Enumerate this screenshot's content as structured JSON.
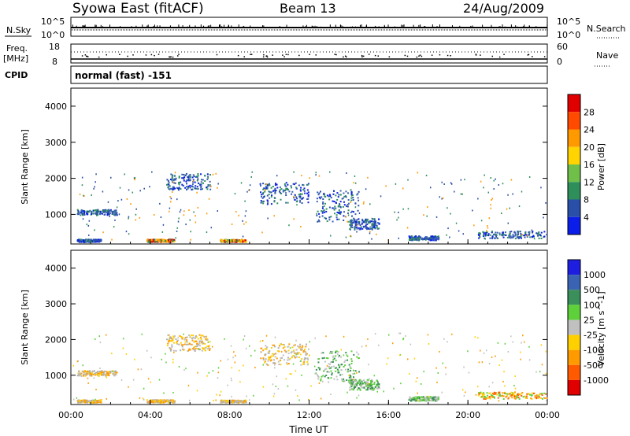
{
  "header": {
    "station": "Syowa East (fitACF)",
    "beam": "Beam 13",
    "date": "24/Aug/2009"
  },
  "status_panels": {
    "nsky_label": "N.Sky",
    "nsky_ticks": [
      "10^5",
      "10^0"
    ],
    "nsearch_label": "N.Search",
    "nsearch_ticks": [
      "10^5",
      "10^0"
    ],
    "freq_label_top": "Freq.",
    "freq_label_unit": "[MHz]",
    "freq_ticks": [
      "18",
      "8"
    ],
    "nave_label": "Nave",
    "nave_ticks": [
      "60",
      "0"
    ],
    "cpid_label": "CPID",
    "cpid_value": "normal (fast) -151"
  },
  "chart_data": [
    {
      "type": "heatmap",
      "panel": "power",
      "ylabel": "Slant Range [km]",
      "ylim": [
        180,
        4500
      ],
      "y_ticks": [
        "4000",
        "3000",
        "2000",
        "1000"
      ],
      "x_ticks": [
        "00:00",
        "04:00",
        "08:00",
        "12:00",
        "16:00",
        "20:00",
        "00:00"
      ],
      "xlim_hours": [
        0,
        24
      ],
      "colorbar": {
        "label": "Power [dB]",
        "ticks": [
          "28",
          "24",
          "20",
          "16",
          "12",
          "8",
          "4"
        ],
        "colors": [
          "#e00000",
          "#ff4a00",
          "#ff9900",
          "#ffd400",
          "#6fbf4a",
          "#2f8f5b",
          "#2a4fa8",
          "#0b1de8"
        ]
      },
      "echo_regions": [
        {
          "t": [
            0.3,
            1.5
          ],
          "r": [
            250,
            330
          ],
          "level": "low"
        },
        {
          "t": [
            0.3,
            2.3
          ],
          "r": [
            1000,
            1150
          ],
          "level": "low"
        },
        {
          "t": [
            3.8,
            5.2
          ],
          "r": [
            250,
            330
          ],
          "level": "high"
        },
        {
          "t": [
            4.8,
            7.0
          ],
          "r": [
            1700,
            2150
          ],
          "level": "low"
        },
        {
          "t": [
            7.5,
            8.8
          ],
          "r": [
            250,
            320
          ],
          "level": "high"
        },
        {
          "t": [
            9.5,
            12.0
          ],
          "r": [
            1300,
            1900
          ],
          "level": "low"
        },
        {
          "t": [
            12.3,
            14.5
          ],
          "r": [
            800,
            1700
          ],
          "level": "low"
        },
        {
          "t": [
            14.0,
            15.5
          ],
          "r": [
            600,
            900
          ],
          "level": "low"
        },
        {
          "t": [
            17.0,
            18.5
          ],
          "r": [
            300,
            420
          ],
          "level": "low"
        },
        {
          "t": [
            20.5,
            24.0
          ],
          "r": [
            350,
            550
          ],
          "level": "low"
        }
      ]
    },
    {
      "type": "heatmap",
      "panel": "velocity",
      "xlabel": "Time UT",
      "ylabel": "Slant Range [km]",
      "ylim": [
        180,
        4500
      ],
      "y_ticks": [
        "4000",
        "3000",
        "2000",
        "1000"
      ],
      "x_ticks": [
        "00:00",
        "04:00",
        "08:00",
        "12:00",
        "16:00",
        "20:00",
        "00:00"
      ],
      "xlim_hours": [
        0,
        24
      ],
      "colorbar": {
        "label": "Velocity [m s^-1]",
        "ticks": [
          "1000",
          "500",
          "100",
          "25",
          "-25",
          "-100",
          "-500",
          "-1000"
        ],
        "colors": [
          "#1e1ee0",
          "#3a63b3",
          "#3a8f5a",
          "#5ed13a",
          "#c0c0c0",
          "#ffd000",
          "#ff9a00",
          "#ff5a00",
          "#e00000"
        ]
      },
      "echo_regions": [
        {
          "t": [
            0.3,
            1.5
          ],
          "r": [
            250,
            330
          ],
          "level": "ground"
        },
        {
          "t": [
            0.3,
            2.3
          ],
          "r": [
            1000,
            1150
          ],
          "level": "ground"
        },
        {
          "t": [
            3.8,
            5.2
          ],
          "r": [
            250,
            330
          ],
          "level": "ground"
        },
        {
          "t": [
            4.8,
            7.0
          ],
          "r": [
            1700,
            2150
          ],
          "level": "ground"
        },
        {
          "t": [
            7.5,
            8.8
          ],
          "r": [
            250,
            320
          ],
          "level": "ground"
        },
        {
          "t": [
            9.5,
            12.0
          ],
          "r": [
            1300,
            1900
          ],
          "level": "ground"
        },
        {
          "t": [
            12.3,
            14.5
          ],
          "r": [
            800,
            1700
          ],
          "level": "toward"
        },
        {
          "t": [
            14.0,
            15.5
          ],
          "r": [
            600,
            900
          ],
          "level": "toward"
        },
        {
          "t": [
            17.0,
            18.5
          ],
          "r": [
            300,
            420
          ],
          "level": "toward"
        },
        {
          "t": [
            20.5,
            24.0
          ],
          "r": [
            350,
            550
          ],
          "level": "away"
        }
      ]
    }
  ]
}
